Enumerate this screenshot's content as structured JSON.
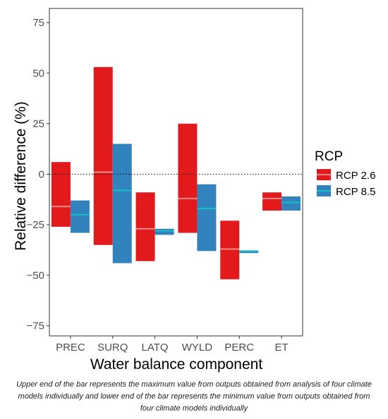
{
  "chart_data": {
    "type": "bar",
    "subtype": "floating-range",
    "categories": [
      "PREC",
      "SURQ",
      "LATQ",
      "WYLD",
      "PERC",
      "ET"
    ],
    "series": [
      {
        "name": "RCP 2.6",
        "color": "#e31a1c",
        "median_color": "#f08a88",
        "ranges": [
          [
            -26,
            6
          ],
          [
            -35,
            53
          ],
          [
            -43,
            -9
          ],
          [
            -29,
            25
          ],
          [
            -52,
            -23
          ],
          [
            -18,
            -9
          ]
        ],
        "medians": [
          -16,
          1,
          -27,
          -12,
          -37,
          -12
        ]
      },
      {
        "name": "RCP 8.5",
        "color": "#3182bd",
        "median_color": "#17bfc9",
        "ranges": [
          [
            -29,
            -13
          ],
          [
            -44,
            15
          ],
          [
            -30,
            -27
          ],
          [
            -38,
            -5
          ],
          [
            -39,
            -38
          ],
          [
            -18,
            -11
          ]
        ],
        "medians": [
          -20,
          -8,
          -28,
          -17,
          -38,
          -14
        ]
      }
    ],
    "ylabel": "Relative difference (%)",
    "xlabel": "Water balance component",
    "ylim": [
      -80,
      82
    ],
    "yticks": [
      "75",
      "50",
      "25",
      "0",
      "−25",
      "−50",
      "−75"
    ],
    "ytick_values": [
      75,
      50,
      25,
      0,
      -25,
      -50,
      -75
    ],
    "reference_line": 0,
    "grid": false,
    "legend": {
      "title": "RCP",
      "position": "right"
    }
  },
  "caption": "Upper end of the bar represents the maximum value from outputs obtained from analysis of four climate models individually and lower end of the bar represents the minimum value from outputs obtained from four climate models individually"
}
